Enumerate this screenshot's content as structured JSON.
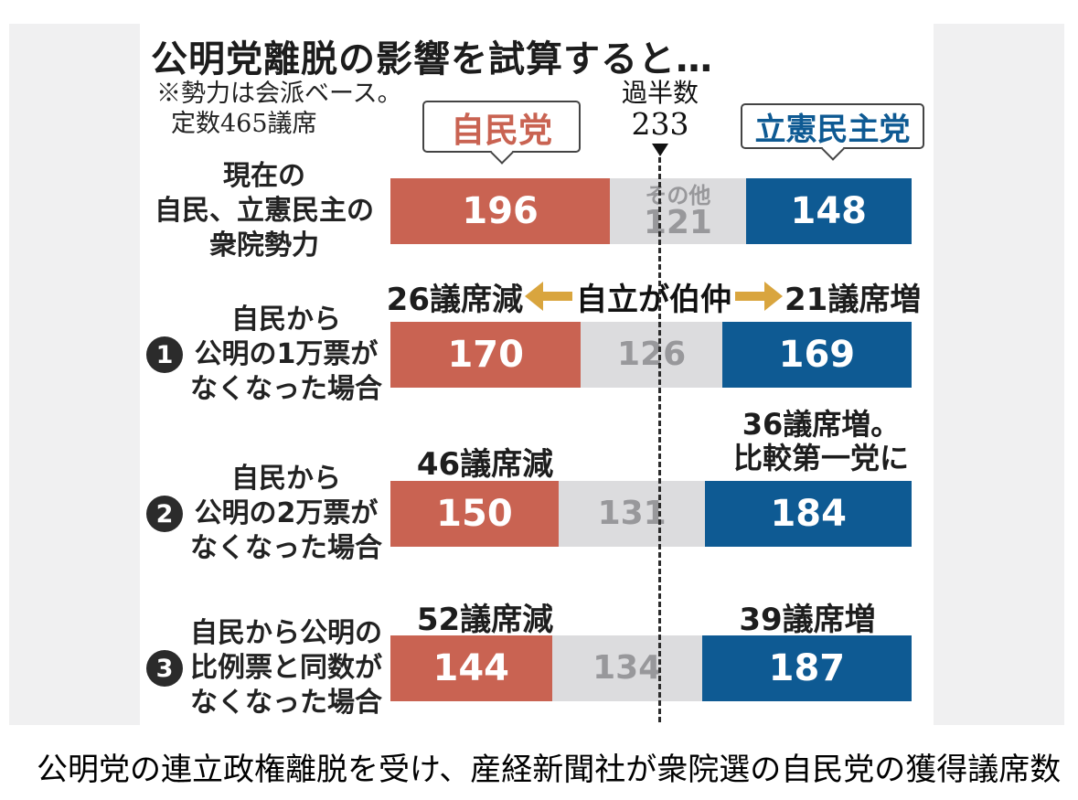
{
  "title": "公明党離脱の影響を試算すると…",
  "note_line1": "※勢力は会派ベース。",
  "note_line2": "定数465議席",
  "majority": {
    "label": "過半数",
    "value": "233"
  },
  "parties": {
    "ldp": "自民党",
    "cdp": "立憲民主党"
  },
  "rows": [
    {
      "num": "",
      "label_lines": [
        "現在の",
        "自民、立憲民主の",
        "衆院勢力"
      ],
      "ldp": 196,
      "other": 121,
      "cdp": 148,
      "other_label": "その他"
    },
    {
      "num": "1",
      "label_lines": [
        "自民から",
        "公明の1万票が",
        "なくなった場合"
      ],
      "ldp": 170,
      "other": 126,
      "cdp": 169,
      "left_note": "26議席減",
      "center_note": "自立が伯仲",
      "right_note": "21議席増"
    },
    {
      "num": "2",
      "label_lines": [
        "自民から",
        "公明の2万票が",
        "なくなった場合"
      ],
      "ldp": 150,
      "other": 131,
      "cdp": 184,
      "left_note": "46議席減",
      "right_note_line1": "36議席増。",
      "right_note_line2": "比較第一党に"
    },
    {
      "num": "3",
      "label_lines": [
        "自民から公明の",
        "比例票と同数が",
        "なくなった場合"
      ],
      "ldp": 144,
      "other": 134,
      "cdp": 187,
      "left_note": "52議席減",
      "right_note": "39議席増"
    }
  ],
  "caption": "公明党の連立政権離脱を受け、産経新聞社が衆院選の自民党の獲得議席数",
  "colors": {
    "ldp_red": "#c96352",
    "cdp_blue": "#0e5a93",
    "other_gray": "#dcdcde",
    "gray_text": "#98989b",
    "arrow_gold": "#d9a53e",
    "page_gray": "#f0f0f1"
  },
  "chart_data": {
    "type": "bar",
    "orientation": "horizontal-stacked",
    "title": "公明党離脱の影響を試算すると…",
    "note": "※勢力は会派ベース。定数465議席",
    "total_seats": 465,
    "majority_line": {
      "label": "過半数",
      "value": 233
    },
    "categories": [
      "現在の自民、立憲民主の衆院勢力",
      "①自民から公明の1万票がなくなった場合",
      "②自民から公明の2万票がなくなった場合",
      "③自民から公明の比例票と同数がなくなった場合"
    ],
    "series": [
      {
        "name": "自民党",
        "values": [
          196,
          170,
          150,
          144
        ],
        "color": "#c96352"
      },
      {
        "name": "その他",
        "values": [
          121,
          126,
          131,
          134
        ],
        "color": "#dcdcde"
      },
      {
        "name": "立憲民主党",
        "values": [
          148,
          169,
          184,
          187
        ],
        "color": "#0e5a93"
      }
    ],
    "annotations": [
      "26議席減",
      "自立が伯仲",
      "21議席増",
      "46議席減",
      "36議席増。比較第一党に",
      "52議席減",
      "39議席増"
    ],
    "legend_position": "top",
    "grid": false
  }
}
